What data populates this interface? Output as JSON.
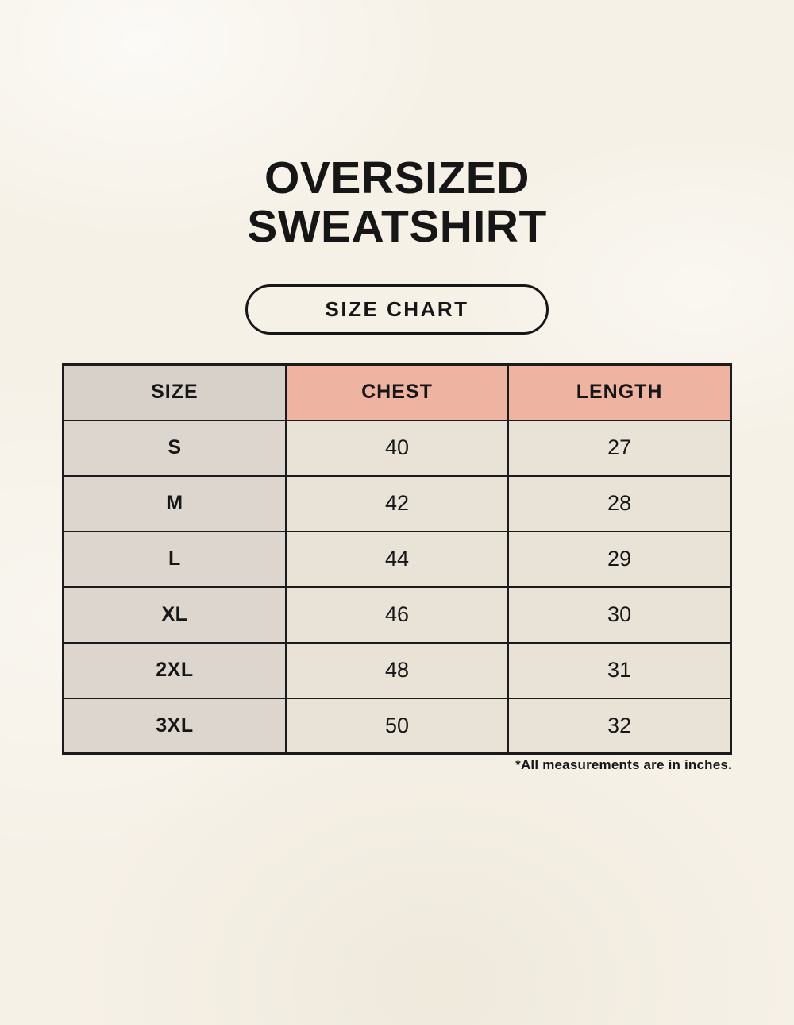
{
  "page": {
    "background_color": "#f6f1e7",
    "text_color": "#161616"
  },
  "title": {
    "line1": "OVERSIZED",
    "line2": "SWEATSHIRT"
  },
  "size_chart_button": {
    "label": "SIZE CHART"
  },
  "chart_data": {
    "type": "table",
    "title": "OVERSIZED SWEATSHIRT",
    "subtitle": "SIZE CHART",
    "columns": [
      "SIZE",
      "CHEST",
      "LENGTH"
    ],
    "rows": [
      [
        "S",
        "40",
        "27"
      ],
      [
        "M",
        "42",
        "28"
      ],
      [
        "L",
        "44",
        "29"
      ],
      [
        "XL",
        "46",
        "30"
      ],
      [
        "2XL",
        "48",
        "31"
      ],
      [
        "3XL",
        "50",
        "32"
      ]
    ],
    "units": "inches",
    "footnote": "*All measurements are in inches.",
    "colors": {
      "size_column_header": "#d8d1ca",
      "size_column_cells": "#ddd6cf",
      "accent_header": "#efb3a2",
      "data_cells": "#e9e2d6",
      "border": "#1b1b1b",
      "background": "#f6f1e7"
    }
  },
  "footnote": {
    "text": "*All measurements are in inches."
  }
}
